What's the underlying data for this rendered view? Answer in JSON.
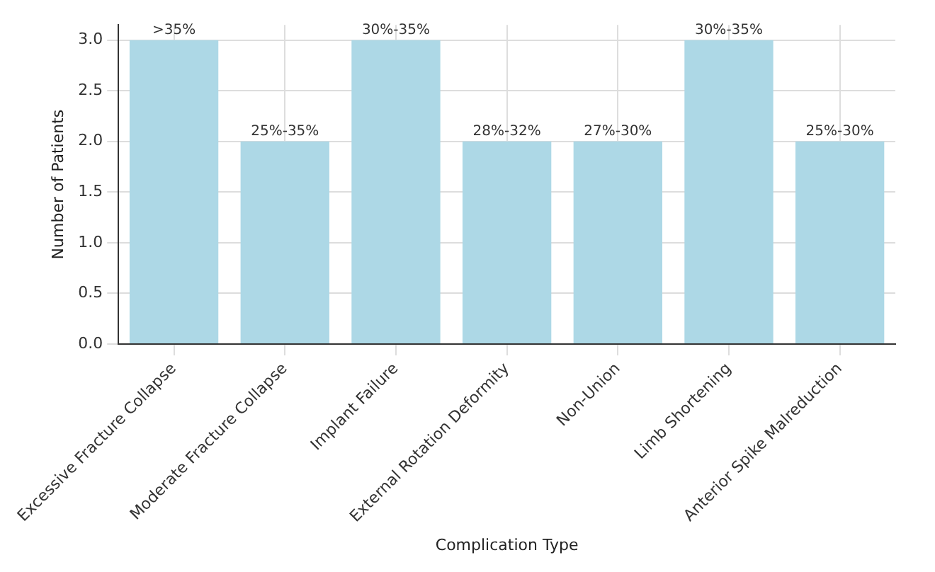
{
  "chart_data": {
    "type": "bar",
    "xlabel": "Complication Type",
    "ylabel": "Number of Patients",
    "categories": [
      "Excessive Fracture Collapse",
      "Moderate Fracture Collapse",
      "Implant Failure",
      "External Rotation Deformity",
      "Non-Union",
      "Limb Shortening",
      "Anterior Spike Malreduction"
    ],
    "values": [
      3,
      2,
      3,
      2,
      2,
      3,
      2
    ],
    "annotations": [
      {
        "text": ">35%",
        "x": "Excessive Fracture Collapse",
        "y": 3
      },
      {
        "text": "25%-35%",
        "x": "Moderate Fracture Collapse",
        "y": 2
      },
      {
        "text": "30%-35%",
        "x": "Implant Failure",
        "y": 3
      },
      {
        "text": "28%-32%",
        "x": "External Rotation Deformity",
        "y": 2
      },
      {
        "text": "27%-30%",
        "x": "Non-Union",
        "y": 2
      },
      {
        "text": "30%-35%",
        "x": "Limb Shortening",
        "y": 3
      },
      {
        "text": "25%-30%",
        "x": "Anterior Spike Malreduction",
        "y": 2
      }
    ],
    "color": "#add8e6",
    "ylim": [
      0,
      3.15
    ],
    "yticks": [
      {
        "value": 0,
        "label": "0.0"
      },
      {
        "value": 0.5,
        "label": "0.5"
      },
      {
        "value": 1,
        "label": "1.0"
      },
      {
        "value": 1.5,
        "label": "1.5"
      },
      {
        "value": 2,
        "label": "2.0"
      },
      {
        "value": 2.5,
        "label": "2.5"
      },
      {
        "value": 3,
        "label": "3.0"
      }
    ],
    "grid": true
  }
}
